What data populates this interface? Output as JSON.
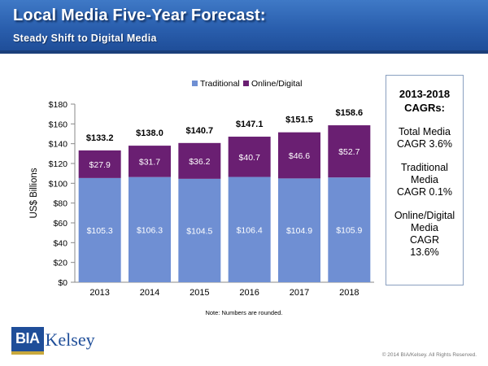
{
  "header": {
    "title": "Local Media Five-Year Forecast:",
    "subtitle": "Steady Shift to Digital Media"
  },
  "cagr_box": {
    "heading_line1": "2013-2018",
    "heading_line2": "CAGRs:",
    "total": [
      "Total Media",
      "CAGR 3.6%"
    ],
    "traditional": [
      "Traditional",
      "Media",
      "CAGR 0.1%"
    ],
    "digital": [
      "Online/Digital",
      "Media",
      "CAGR",
      "13.6%"
    ]
  },
  "note": "Note: Numbers are rounded.",
  "logo": {
    "part1": "BIA",
    "part2": "Kelsey"
  },
  "copyright": "© 2014 BIA/Kelsey.  All Rights Reserved.",
  "colors": {
    "traditional": "#6f8fd3",
    "digital": "#6a1f72",
    "banner": "#2a5fae"
  },
  "chart_data": {
    "type": "bar",
    "stacked": true,
    "categories": [
      "2013",
      "2014",
      "2015",
      "2016",
      "2017",
      "2018"
    ],
    "series": [
      {
        "name": "Traditional",
        "values": [
          105.3,
          106.3,
          104.5,
          106.4,
          104.9,
          105.9
        ],
        "labels": [
          "$105.3",
          "$106.3",
          "$104.5",
          "$106.4",
          "$104.9",
          "$105.9"
        ]
      },
      {
        "name": "Online/Digital",
        "values": [
          27.9,
          31.7,
          36.2,
          40.7,
          46.6,
          52.7
        ],
        "labels": [
          "$27.9",
          "$31.7",
          "$36.2",
          "$40.7",
          "$46.6",
          "$52.7"
        ]
      }
    ],
    "totals": [
      133.2,
      138.0,
      140.7,
      147.1,
      151.5,
      158.6
    ],
    "total_labels": [
      "$133.2",
      "$138.0",
      "$140.7",
      "$147.1",
      "$151.5",
      "$158.6"
    ],
    "ylabel": "US$ Billions",
    "ylim": [
      0,
      180
    ],
    "yticks": [
      0,
      20,
      40,
      60,
      80,
      100,
      120,
      140,
      160,
      180
    ],
    "ytick_labels": [
      "$0",
      "$20",
      "$40",
      "$60",
      "$80",
      "$100",
      "$120",
      "$140",
      "$160",
      "$180"
    ],
    "grid": false,
    "legend": "top"
  }
}
